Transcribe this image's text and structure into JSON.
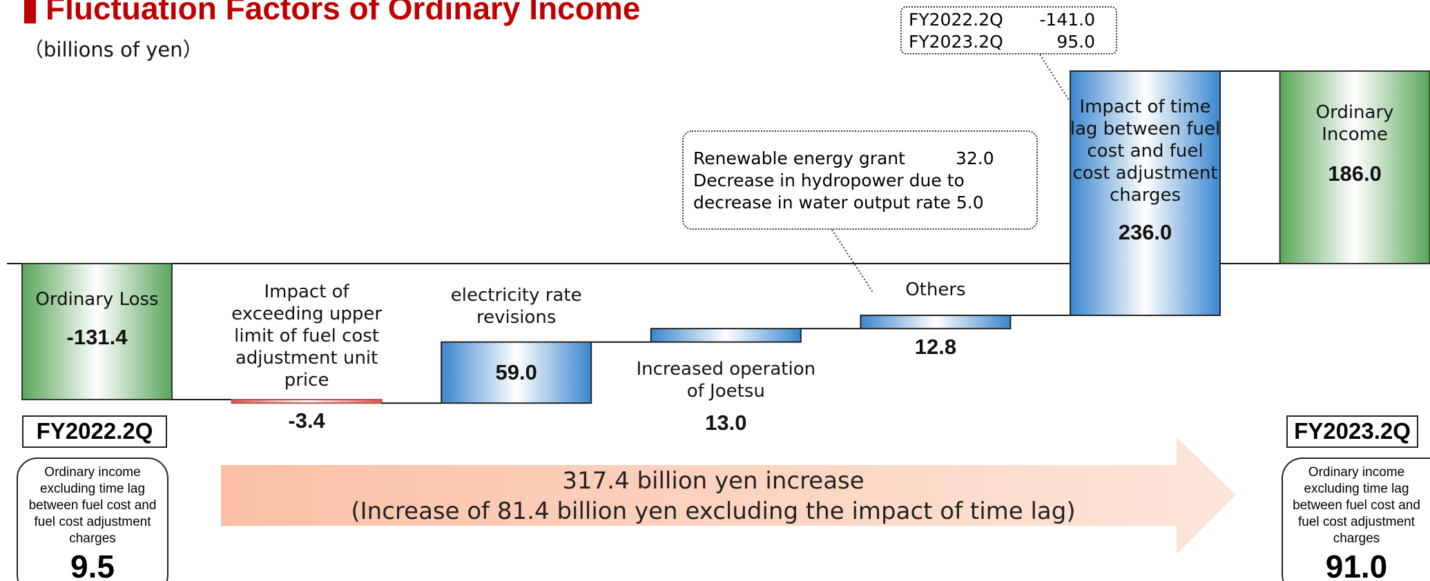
{
  "title": "Fluctuation Factors of Ordinary Income",
  "subtitle": "（billions of yen）",
  "chart_data": {
    "type": "waterfall",
    "categories": [
      "Ordinary Loss",
      "Impact of exceeding upper limit of fuel cost adjustment unit price",
      "electricity rate revisions",
      "Increased operation of Joetsu",
      "Others",
      "Impact of time lag between fuel cost and fuel cost adjustment charges",
      "Ordinary Income"
    ],
    "values": [
      -131.4,
      -3.4,
      59.0,
      13.0,
      12.8,
      236.0,
      186.0
    ],
    "value_labels": [
      "-131.4",
      "-3.4",
      "59.0",
      "13.0",
      "12.8",
      "236.0",
      "186.0"
    ],
    "is_total": [
      true,
      false,
      false,
      false,
      false,
      false,
      true
    ],
    "color_total": "#5aa55a",
    "color_increase": "#3a86cf",
    "color_decrease": "#d9534f"
  },
  "annotations": [
    {
      "items": [
        {
          "label": "FY2022.2Q",
          "value": "-141.0"
        },
        {
          "label": "FY2023.2Q",
          "value": "95.0"
        }
      ]
    },
    {
      "items": [
        {
          "label": "Renewable energy grant",
          "value": "32.0"
        },
        {
          "label": "Decrease in hydropower due to decrease in water output rate",
          "value": "5.0"
        }
      ]
    }
  ],
  "start_note": {
    "period": "FY2022.2Q",
    "label": "Ordinary income excluding time lag between fuel cost and fuel cost adjustment charges",
    "value": "9.5"
  },
  "end_note": {
    "period": "FY2023.2Q",
    "label": "Ordinary income excluding time lag between fuel cost and fuel cost adjustment charges",
    "value": "91.0"
  },
  "arrow_text": [
    "317.4 billion yen increase",
    "(Increase of 81.4 billion yen excluding the impact of time lag)"
  ]
}
